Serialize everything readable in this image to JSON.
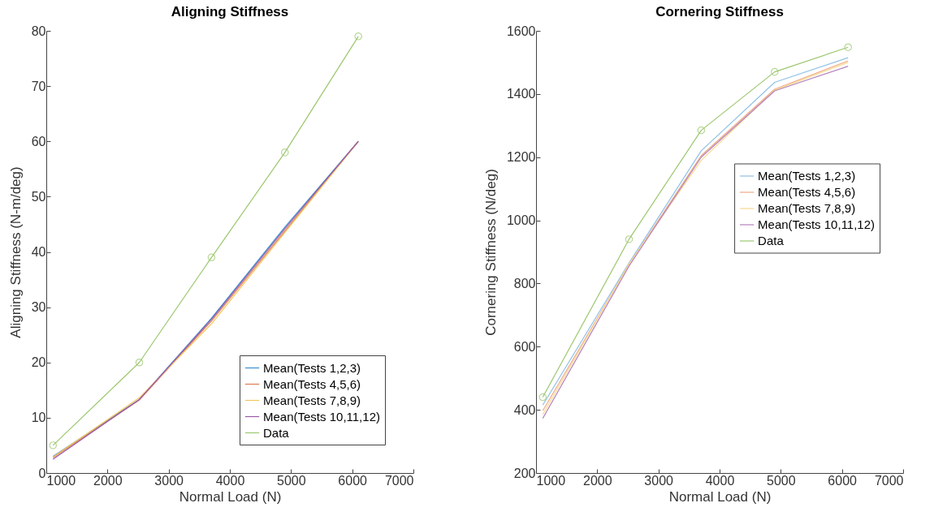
{
  "chart_data": [
    {
      "type": "line",
      "title": "Aligning Stiffness",
      "xlabel": "Normal Load (N)",
      "ylabel": "Aligning Stiffness (N-m/deg)",
      "x": [
        1110,
        2520,
        3700,
        4900,
        6100
      ],
      "xlim": [
        1000,
        7000
      ],
      "xticks": [
        1000,
        2000,
        3000,
        4000,
        5000,
        6000,
        7000
      ],
      "ylim": [
        0,
        80
      ],
      "yticks": [
        0,
        10,
        20,
        30,
        40,
        50,
        60,
        70,
        80
      ],
      "legend": "bottom right",
      "series": [
        {
          "name": "Mean(Tests 1,2,3)",
          "color": "#3b8fd0",
          "values": [
            3.0,
            13.3,
            28,
            44.5,
            60
          ]
        },
        {
          "name": "Mean(Tests 4,5,6)",
          "color": "#e07a4f",
          "values": [
            2.8,
            13.2,
            27.5,
            43.8,
            60
          ]
        },
        {
          "name": "Mean(Tests 7,8,9)",
          "color": "#f2c75c",
          "values": [
            2.9,
            13.6,
            27,
            43.5,
            60
          ]
        },
        {
          "name": "Mean(Tests 10,11,12)",
          "color": "#9a5aa8",
          "values": [
            2.5,
            13.3,
            27.8,
            44.2,
            60
          ]
        },
        {
          "name": "Data",
          "color": "#9cc76e",
          "marker": "circle",
          "values": [
            5,
            20,
            39,
            58,
            79
          ]
        }
      ]
    },
    {
      "type": "line",
      "title": "Cornering Stiffness",
      "xlabel": "Normal Load (N)",
      "ylabel": "Cornering Stiffness (N/deg)",
      "x": [
        1110,
        2520,
        3700,
        4900,
        6100
      ],
      "xlim": [
        1000,
        7000
      ],
      "xticks": [
        1000,
        2000,
        3000,
        4000,
        5000,
        6000,
        7000
      ],
      "ylim": [
        200,
        1600
      ],
      "yticks": [
        200,
        400,
        600,
        800,
        1000,
        1200,
        1400,
        1600
      ],
      "legend": "right",
      "series": [
        {
          "name": "Mean(Tests 1,2,3)",
          "color": "#8fc0e6",
          "values": [
            415,
            865,
            1220,
            1437,
            1515
          ]
        },
        {
          "name": "Mean(Tests 4,5,6)",
          "color": "#f0a784",
          "values": [
            397,
            860,
            1205,
            1415,
            1505
          ]
        },
        {
          "name": "Mean(Tests 7,8,9)",
          "color": "#f7d98f",
          "values": [
            385,
            862,
            1190,
            1412,
            1500
          ]
        },
        {
          "name": "Mean(Tests 10,11,12)",
          "color": "#b382bd",
          "values": [
            373,
            855,
            1200,
            1410,
            1488
          ]
        },
        {
          "name": "Data",
          "color": "#9cc76e",
          "marker": "circle",
          "values": [
            440,
            940,
            1285,
            1470,
            1548
          ]
        }
      ]
    }
  ]
}
